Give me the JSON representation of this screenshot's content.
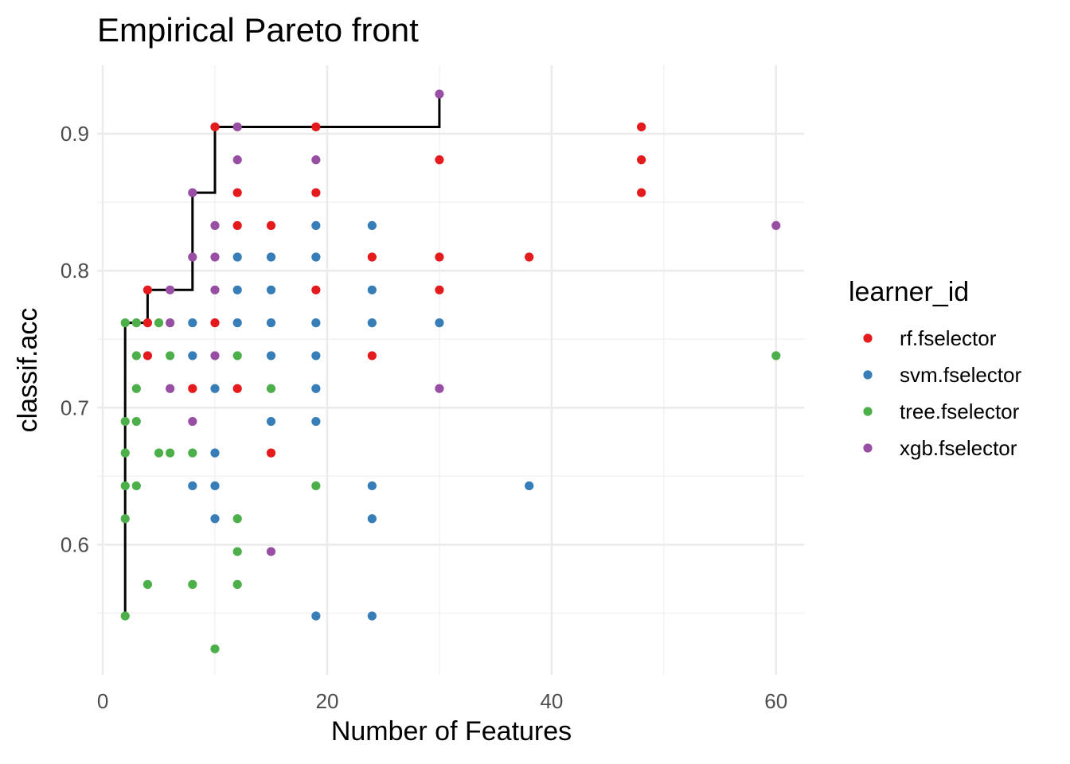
{
  "chart_data": {
    "type": "scatter",
    "title": "Empirical Pareto front",
    "xlabel": "Number of Features",
    "ylabel": "classif.acc",
    "xlim": [
      -0.5,
      62.5
    ],
    "ylim": [
      0.505,
      0.95
    ],
    "x_ticks": [
      0,
      20,
      40,
      60
    ],
    "x_tick_labels": [
      "0",
      "20",
      "40",
      "60"
    ],
    "y_ticks": [
      0.6,
      0.7,
      0.8,
      0.9
    ],
    "y_tick_labels": [
      "0.6",
      "0.7",
      "0.8",
      "0.9"
    ],
    "grid": true,
    "legend": {
      "title": "learner_id",
      "position": "right"
    },
    "series": [
      {
        "name": "rf.fselector",
        "color": "#e41a1c",
        "points": [
          [
            4,
            0.786
          ],
          [
            4,
            0.762
          ],
          [
            4,
            0.738
          ],
          [
            8,
            0.714
          ],
          [
            10,
            0.905
          ],
          [
            10,
            0.762
          ],
          [
            12,
            0.857
          ],
          [
            12,
            0.833
          ],
          [
            12,
            0.714
          ],
          [
            15,
            0.833
          ],
          [
            15,
            0.667
          ],
          [
            19,
            0.905
          ],
          [
            19,
            0.857
          ],
          [
            19,
            0.786
          ],
          [
            24,
            0.81
          ],
          [
            24,
            0.738
          ],
          [
            30,
            0.881
          ],
          [
            30,
            0.81
          ],
          [
            30,
            0.786
          ],
          [
            38,
            0.81
          ],
          [
            48,
            0.905
          ],
          [
            48,
            0.881
          ],
          [
            48,
            0.857
          ]
        ]
      },
      {
        "name": "svm.fselector",
        "color": "#377eb8",
        "points": [
          [
            8,
            0.762
          ],
          [
            8,
            0.738
          ],
          [
            8,
            0.643
          ],
          [
            10,
            0.714
          ],
          [
            10,
            0.667
          ],
          [
            10,
            0.643
          ],
          [
            10,
            0.619
          ],
          [
            12,
            0.81
          ],
          [
            12,
            0.786
          ],
          [
            12,
            0.762
          ],
          [
            15,
            0.81
          ],
          [
            15,
            0.786
          ],
          [
            15,
            0.762
          ],
          [
            15,
            0.738
          ],
          [
            15,
            0.69
          ],
          [
            19,
            0.833
          ],
          [
            19,
            0.81
          ],
          [
            19,
            0.762
          ],
          [
            19,
            0.738
          ],
          [
            19,
            0.714
          ],
          [
            19,
            0.69
          ],
          [
            19,
            0.548
          ],
          [
            24,
            0.833
          ],
          [
            24,
            0.786
          ],
          [
            24,
            0.762
          ],
          [
            24,
            0.643
          ],
          [
            24,
            0.619
          ],
          [
            24,
            0.548
          ],
          [
            30,
            0.762
          ],
          [
            38,
            0.643
          ]
        ]
      },
      {
        "name": "tree.fselector",
        "color": "#4daf4a",
        "points": [
          [
            2,
            0.762
          ],
          [
            2,
            0.69
          ],
          [
            2,
            0.667
          ],
          [
            2,
            0.643
          ],
          [
            2,
            0.619
          ],
          [
            2,
            0.548
          ],
          [
            3,
            0.762
          ],
          [
            3,
            0.738
          ],
          [
            3,
            0.714
          ],
          [
            3,
            0.69
          ],
          [
            3,
            0.643
          ],
          [
            4,
            0.571
          ],
          [
            5,
            0.762
          ],
          [
            5,
            0.667
          ],
          [
            6,
            0.738
          ],
          [
            6,
            0.667
          ],
          [
            8,
            0.667
          ],
          [
            8,
            0.571
          ],
          [
            10,
            0.524
          ],
          [
            12,
            0.738
          ],
          [
            12,
            0.619
          ],
          [
            12,
            0.595
          ],
          [
            12,
            0.571
          ],
          [
            15,
            0.714
          ],
          [
            19,
            0.643
          ],
          [
            60,
            0.738
          ]
        ]
      },
      {
        "name": "xgb.fselector",
        "color": "#984ea3",
        "points": [
          [
            6,
            0.786
          ],
          [
            6,
            0.762
          ],
          [
            6,
            0.714
          ],
          [
            8,
            0.857
          ],
          [
            8,
            0.81
          ],
          [
            8,
            0.69
          ],
          [
            10,
            0.833
          ],
          [
            10,
            0.81
          ],
          [
            10,
            0.786
          ],
          [
            10,
            0.738
          ],
          [
            12,
            0.905
          ],
          [
            12,
            0.881
          ],
          [
            15,
            0.595
          ],
          [
            19,
            0.881
          ],
          [
            30,
            0.929
          ],
          [
            30,
            0.714
          ],
          [
            60,
            0.833
          ]
        ]
      }
    ],
    "pareto_front": {
      "color": "#000000",
      "points": [
        [
          2,
          0.548
        ],
        [
          2,
          0.762
        ],
        [
          4,
          0.762
        ],
        [
          4,
          0.786
        ],
        [
          8,
          0.786
        ],
        [
          8,
          0.857
        ],
        [
          10,
          0.857
        ],
        [
          10,
          0.905
        ],
        [
          30,
          0.905
        ],
        [
          30,
          0.929
        ]
      ]
    }
  }
}
